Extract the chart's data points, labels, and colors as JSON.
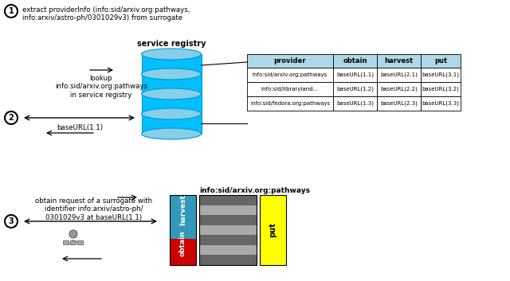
{
  "bg_color": "#ffffff",
  "title_step1": "extract providerInfo (info:sid/arxiv.org:pathways,\ninfo:arxiv/astro-ph/0301029v3) from surrogate",
  "step2_text_left": "lookup\ninfo:sid/arxiv.org:pathways\nin service registry",
  "step2_text_below": "baseURL(1.1)",
  "service_registry_label": "service registry",
  "table_header": [
    "provider",
    "obtain",
    "harvest",
    "put"
  ],
  "table_rows": [
    [
      "info:sid/arxiv.org:pathways",
      "baseURL(1.1)",
      "baseURL(2.1)",
      "baseURL(3.1)"
    ],
    [
      "info:sid/libraryland...",
      "baseURL(1.2)",
      "baseURL(2.2)",
      "baseURL(3.2)"
    ],
    [
      "info:sid/fedora.org:pathways",
      "baseURL(1.3)",
      "baseURL(2.3)",
      "baseURL(3.3)"
    ]
  ],
  "table_header_color": "#add8e6",
  "table_bg_color": "#ffffff",
  "table_border_color": "#000000",
  "cylinder_color": "#00bfff",
  "cylinder_dark": "#0099cc",
  "cylinder_top_color": "#87ceeb",
  "step3_label": "info:sid/arxiv.org:pathways",
  "step3_text": "obtain request of a surrogate with\nidentifier info:arxiv/astro-ph/\n0301029v3 at baseURL(1.1)",
  "obtain_color": "#3399bb",
  "harvest_color": "#cc0000",
  "put_color": "#ffff00",
  "gray_stripes": [
    "#666666",
    "#aaaaaa",
    "#666666",
    "#aaaaaa",
    "#666666",
    "#aaaaaa",
    "#666666"
  ],
  "arrow_color": "#000000"
}
